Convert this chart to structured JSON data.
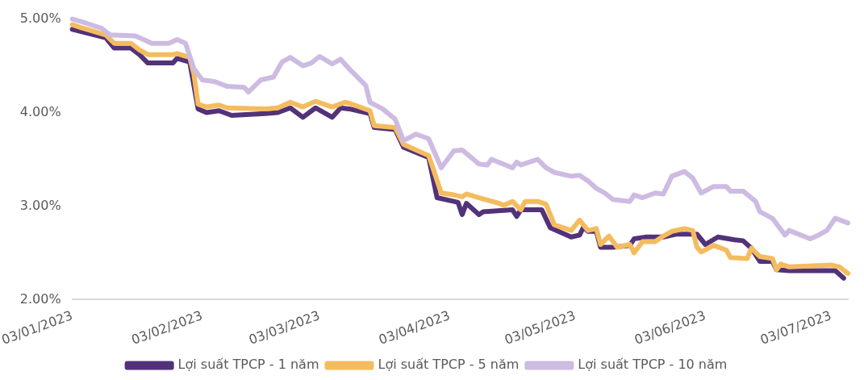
{
  "chart_data": {
    "type": "line",
    "legend": "bottom",
    "line_style": "solid",
    "marker": "none",
    "xlim": [
      "2023-01-03",
      "2023-07-07"
    ],
    "xticks": [
      {
        "value": "2023-01-03",
        "label": "03/01/2023"
      },
      {
        "value": "2023-02-03",
        "label": "03/02/2023"
      },
      {
        "value": "2023-03-03",
        "label": "03/03/2023"
      },
      {
        "value": "2023-04-03",
        "label": "03/04/2023"
      },
      {
        "value": "2023-05-03",
        "label": "03/05/2023"
      },
      {
        "value": "2023-06-03",
        "label": "03/06/2023"
      },
      {
        "value": "2023-07-03",
        "label": "03/07/2023"
      }
    ],
    "ylim": [
      2,
      5
    ],
    "yticks": [
      {
        "value": 2,
        "label": "2.00%"
      },
      {
        "value": 3,
        "label": "3.00%"
      },
      {
        "value": 4,
        "label": "4.00%"
      },
      {
        "value": 5,
        "label": "5.00%"
      }
    ],
    "series": [
      {
        "name": "Lợi suất TPCP - 1 năm",
        "color": "#523278",
        "x": [
          "2023-01-03",
          "2023-01-11",
          "2023-01-13",
          "2023-01-17",
          "2023-01-19",
          "2023-01-21",
          "2023-01-27",
          "2023-01-28",
          "2023-01-31",
          "2023-02-02",
          "2023-02-04",
          "2023-02-07",
          "2023-02-10",
          "2023-02-18",
          "2023-02-21",
          "2023-02-24",
          "2023-02-27",
          "2023-03-02",
          "2023-03-06",
          "2023-03-08",
          "2023-03-10",
          "2023-03-15",
          "2023-03-16",
          "2023-03-21",
          "2023-03-23",
          "2023-03-29",
          "2023-03-31",
          "2023-04-04",
          "2023-04-05",
          "2023-04-06",
          "2023-04-07",
          "2023-04-10",
          "2023-04-11",
          "2023-04-18",
          "2023-04-19",
          "2023-04-20",
          "2023-04-25",
          "2023-04-27",
          "2023-05-02",
          "2023-05-04",
          "2023-05-05",
          "2023-05-06",
          "2023-05-08",
          "2023-05-09",
          "2023-05-12",
          "2023-05-16",
          "2023-05-17",
          "2023-05-20",
          "2023-05-24",
          "2023-05-27",
          "2023-06-01",
          "2023-06-03",
          "2023-06-06",
          "2023-06-10",
          "2023-06-12",
          "2023-06-14",
          "2023-06-16",
          "2023-06-19",
          "2023-06-20",
          "2023-06-23",
          "2023-07-04",
          "2023-07-06"
        ],
        "values": [
          4.89,
          4.8,
          4.69,
          4.69,
          4.62,
          4.53,
          4.53,
          4.58,
          4.54,
          4.04,
          4.0,
          4.02,
          3.97,
          3.99,
          4.0,
          4.05,
          3.95,
          4.05,
          3.95,
          4.05,
          4.04,
          3.99,
          3.84,
          3.82,
          3.63,
          3.52,
          3.09,
          3.05,
          3.04,
          2.91,
          3.03,
          2.91,
          2.94,
          2.96,
          2.89,
          2.96,
          2.96,
          2.77,
          2.67,
          2.69,
          2.78,
          2.73,
          2.73,
          2.56,
          2.56,
          2.58,
          2.65,
          2.67,
          2.67,
          2.7,
          2.7,
          2.59,
          2.67,
          2.64,
          2.63,
          2.55,
          2.41,
          2.41,
          2.32,
          2.31,
          2.31,
          2.23
        ]
      },
      {
        "name": "Lợi suất TPCP - 5 năm",
        "color": "#f4bc5e",
        "x": [
          "2023-01-03",
          "2023-01-05",
          "2023-01-11",
          "2023-01-13",
          "2023-01-17",
          "2023-01-19",
          "2023-01-21",
          "2023-01-27",
          "2023-01-28",
          "2023-01-31",
          "2023-02-01",
          "2023-02-02",
          "2023-02-04",
          "2023-02-07",
          "2023-02-09",
          "2023-02-18",
          "2023-02-21",
          "2023-02-24",
          "2023-02-27",
          "2023-03-02",
          "2023-03-06",
          "2023-03-09",
          "2023-03-10",
          "2023-03-15",
          "2023-03-16",
          "2023-03-21",
          "2023-03-23",
          "2023-03-29",
          "2023-03-30",
          "2023-04-01",
          "2023-04-04",
          "2023-04-06",
          "2023-04-07",
          "2023-04-10",
          "2023-04-14",
          "2023-04-16",
          "2023-04-18",
          "2023-04-20",
          "2023-04-21",
          "2023-04-24",
          "2023-04-26",
          "2023-04-28",
          "2023-05-02",
          "2023-05-04",
          "2023-05-06",
          "2023-05-08",
          "2023-05-09",
          "2023-05-11",
          "2023-05-13",
          "2023-05-16",
          "2023-05-17",
          "2023-05-19",
          "2023-05-22",
          "2023-05-24",
          "2023-05-26",
          "2023-05-29",
          "2023-05-31",
          "2023-06-01",
          "2023-06-02",
          "2023-06-05",
          "2023-06-08",
          "2023-06-09",
          "2023-06-13",
          "2023-06-14",
          "2023-06-16",
          "2023-06-19",
          "2023-06-20",
          "2023-06-21",
          "2023-06-23",
          "2023-07-03",
          "2023-07-05",
          "2023-07-07"
        ],
        "values": [
          4.94,
          4.91,
          4.83,
          4.74,
          4.74,
          4.67,
          4.62,
          4.62,
          4.63,
          4.59,
          4.41,
          4.09,
          4.06,
          4.08,
          4.05,
          4.04,
          4.05,
          4.11,
          4.06,
          4.12,
          4.06,
          4.11,
          4.1,
          4.02,
          3.86,
          3.84,
          3.66,
          3.54,
          3.41,
          3.14,
          3.12,
          3.1,
          3.13,
          3.09,
          3.04,
          3.01,
          3.05,
          2.96,
          3.05,
          3.05,
          3.02,
          2.8,
          2.74,
          2.85,
          2.74,
          2.76,
          2.59,
          2.68,
          2.56,
          2.59,
          2.5,
          2.62,
          2.62,
          2.68,
          2.73,
          2.76,
          2.74,
          2.56,
          2.51,
          2.58,
          2.53,
          2.45,
          2.44,
          2.55,
          2.46,
          2.44,
          2.32,
          2.38,
          2.35,
          2.37,
          2.35,
          2.28
        ]
      },
      {
        "name": "Lợi suất TPCP - 10 năm",
        "color": "#cdbbe2",
        "x": [
          "2023-01-03",
          "2023-01-06",
          "2023-01-10",
          "2023-01-12",
          "2023-01-18",
          "2023-01-20",
          "2023-01-22",
          "2023-01-26",
          "2023-01-28",
          "2023-01-30",
          "2023-02-01",
          "2023-02-03",
          "2023-02-06",
          "2023-02-09",
          "2023-02-13",
          "2023-02-14",
          "2023-02-17",
          "2023-02-20",
          "2023-02-22",
          "2023-02-24",
          "2023-02-27",
          "2023-03-01",
          "2023-03-03",
          "2023-03-06",
          "2023-03-08",
          "2023-03-10",
          "2023-03-14",
          "2023-03-15",
          "2023-03-18",
          "2023-03-21",
          "2023-03-23",
          "2023-03-26",
          "2023-03-29",
          "2023-04-01",
          "2023-04-04",
          "2023-04-06",
          "2023-04-10",
          "2023-04-12",
          "2023-04-13",
          "2023-04-18",
          "2023-04-19",
          "2023-04-20",
          "2023-04-24",
          "2023-04-26",
          "2023-04-28",
          "2023-05-02",
          "2023-05-04",
          "2023-05-06",
          "2023-05-08",
          "2023-05-10",
          "2023-05-12",
          "2023-05-16",
          "2023-05-17",
          "2023-05-19",
          "2023-05-22",
          "2023-05-24",
          "2023-05-26",
          "2023-05-29",
          "2023-05-31",
          "2023-06-02",
          "2023-06-05",
          "2023-06-08",
          "2023-06-09",
          "2023-06-12",
          "2023-06-15",
          "2023-06-16",
          "2023-06-19",
          "2023-06-22",
          "2023-06-23",
          "2023-06-28",
          "2023-06-30",
          "2023-07-02",
          "2023-07-04",
          "2023-07-07"
        ],
        "values": [
          5.0,
          4.96,
          4.9,
          4.83,
          4.82,
          4.78,
          4.74,
          4.74,
          4.78,
          4.74,
          4.47,
          4.35,
          4.33,
          4.28,
          4.27,
          4.22,
          4.35,
          4.38,
          4.54,
          4.59,
          4.5,
          4.53,
          4.6,
          4.52,
          4.57,
          4.47,
          4.29,
          4.11,
          4.04,
          3.93,
          3.7,
          3.77,
          3.72,
          3.41,
          3.59,
          3.6,
          3.45,
          3.44,
          3.5,
          3.41,
          3.47,
          3.44,
          3.5,
          3.41,
          3.36,
          3.32,
          3.33,
          3.27,
          3.19,
          3.14,
          3.07,
          3.05,
          3.12,
          3.09,
          3.14,
          3.13,
          3.32,
          3.37,
          3.3,
          3.14,
          3.21,
          3.21,
          3.16,
          3.16,
          3.05,
          2.94,
          2.87,
          2.69,
          2.74,
          2.65,
          2.69,
          2.74,
          2.87,
          2.82
        ]
      }
    ]
  }
}
